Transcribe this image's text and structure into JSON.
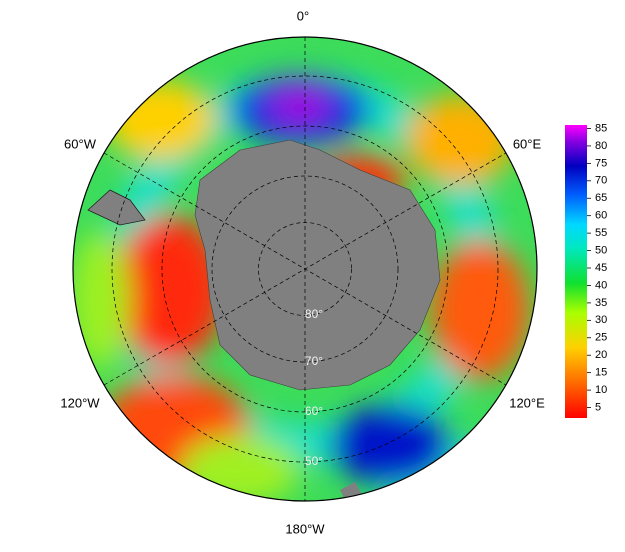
{
  "map": {
    "longitude_labels": {
      "top": "0°",
      "upper_left": "60°W",
      "upper_right": "60°E",
      "lower_left": "120°W",
      "lower_right": "120°E",
      "bottom": "180°W"
    },
    "latitude_labels": [
      "80°",
      "70°",
      "60°",
      "50°"
    ]
  },
  "colorbar": {
    "lim": [
      2,
      86
    ],
    "ticks": [
      5,
      10,
      15,
      20,
      25,
      30,
      35,
      40,
      45,
      50,
      55,
      60,
      65,
      70,
      75,
      80,
      85
    ]
  }
}
